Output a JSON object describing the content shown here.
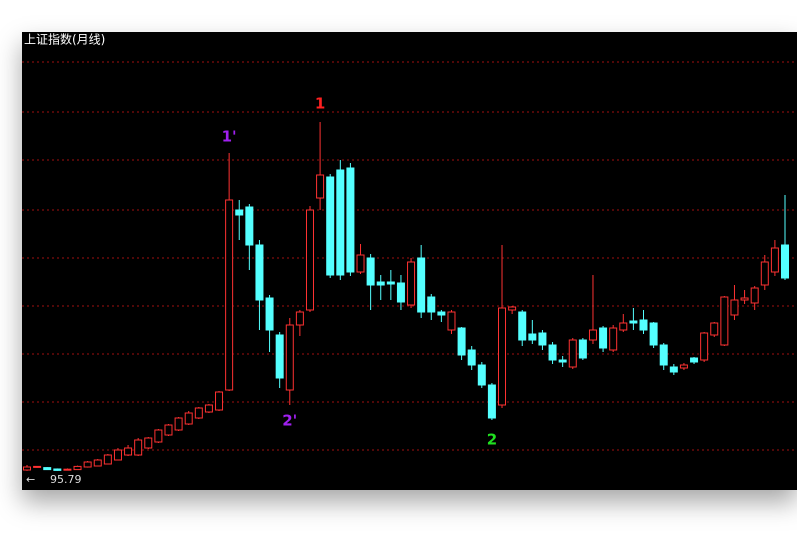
{
  "chart_data": {
    "type": "candlestick",
    "title": "上证指数(月线)",
    "open": [
      100,
      115,
      112,
      105,
      100,
      102,
      115,
      120,
      130,
      150,
      175,
      175,
      210,
      240,
      275,
      300,
      330,
      360,
      390,
      400,
      500,
      1400,
      1415,
      1225,
      960,
      775,
      500,
      825,
      900,
      1460,
      1565,
      1600,
      1610,
      1090,
      1160,
      1040,
      1040,
      1035,
      925,
      1160,
      965,
      890,
      800,
      810,
      700,
      625,
      525,
      425,
      900,
      890,
      780,
      785,
      725,
      650,
      615,
      750,
      750,
      810,
      700,
      800,
      845,
      850,
      835,
      725,
      615,
      610,
      660,
      650,
      775,
      725,
      875,
      950,
      935,
      1025,
      1090,
      1225
    ],
    "high": [
      125,
      120,
      114,
      108,
      108,
      122,
      145,
      155,
      180,
      210,
      225,
      260,
      265,
      305,
      330,
      365,
      395,
      415,
      430,
      495,
      1685,
      1450,
      1430,
      1250,
      975,
      790,
      860,
      900,
      1420,
      1840,
      1580,
      1650,
      1635,
      1230,
      1180,
      1075,
      1100,
      1075,
      1160,
      1225,
      980,
      900,
      900,
      815,
      720,
      640,
      535,
      1225,
      920,
      900,
      850,
      800,
      740,
      670,
      760,
      760,
      1075,
      820,
      825,
      880,
      910,
      900,
      840,
      735,
      630,
      635,
      665,
      790,
      840,
      970,
      1025,
      1000,
      1020,
      1175,
      1250,
      1475
    ],
    "low": [
      95.79,
      112,
      100,
      96,
      98,
      100,
      112,
      118,
      128,
      148,
      170,
      170,
      205,
      235,
      270,
      295,
      325,
      355,
      385,
      395,
      495,
      1250,
      1100,
      800,
      690,
      510,
      425,
      770,
      890,
      1400,
      1060,
      1050,
      1070,
      1080,
      900,
      950,
      950,
      900,
      910,
      860,
      850,
      840,
      780,
      650,
      600,
      510,
      350,
      410,
      880,
      720,
      730,
      700,
      630,
      615,
      605,
      650,
      730,
      690,
      690,
      790,
      800,
      780,
      710,
      600,
      575,
      600,
      630,
      640,
      765,
      720,
      850,
      930,
      900,
      1000,
      1070,
      1050
    ],
    "close": [
      115,
      118,
      102,
      98,
      104,
      118,
      140,
      150,
      175,
      200,
      210,
      250,
      260,
      300,
      325,
      360,
      385,
      410,
      425,
      490,
      1450,
      1375,
      1225,
      950,
      800,
      560,
      825,
      890,
      1400,
      1575,
      1075,
      1075,
      1090,
      1175,
      1025,
      1025,
      1030,
      940,
      1140,
      890,
      890,
      875,
      890,
      675,
      625,
      525,
      360,
      910,
      915,
      750,
      750,
      725,
      650,
      640,
      750,
      660,
      800,
      710,
      810,
      835,
      835,
      800,
      725,
      625,
      590,
      625,
      640,
      785,
      835,
      965,
      950,
      960,
      1010,
      1140,
      1210,
      1060
    ],
    "up_color": "#ff3232",
    "down_color": "#54ffff",
    "ylim": [
      0,
      2290
    ],
    "yticks": [
      200,
      440,
      680,
      920,
      1160,
      1400,
      1650,
      1890,
      2140
    ],
    "grid": true,
    "min_marker": 95.79,
    "annotations": [
      {
        "text": "1'",
        "color": "#a020f0"
      },
      {
        "text": "1",
        "color": "#ff2020"
      },
      {
        "text": "2'",
        "color": "#a020f0"
      },
      {
        "text": "2",
        "color": "#20e020"
      }
    ]
  }
}
